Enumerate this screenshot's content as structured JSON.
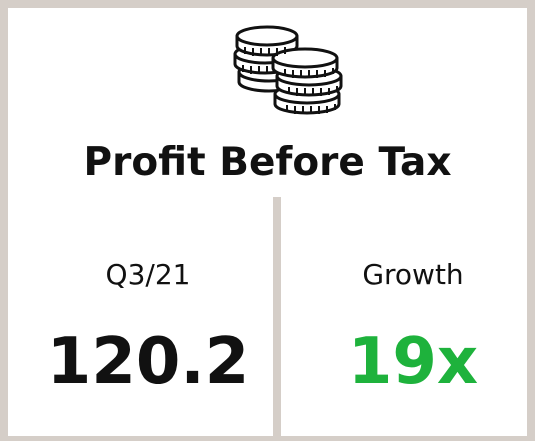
{
  "title": "Profit Before Tax",
  "metrics": [
    {
      "label": "Q3/21",
      "value": 120.2
    },
    {
      "label": "Growth",
      "value": "19x"
    }
  ]
}
